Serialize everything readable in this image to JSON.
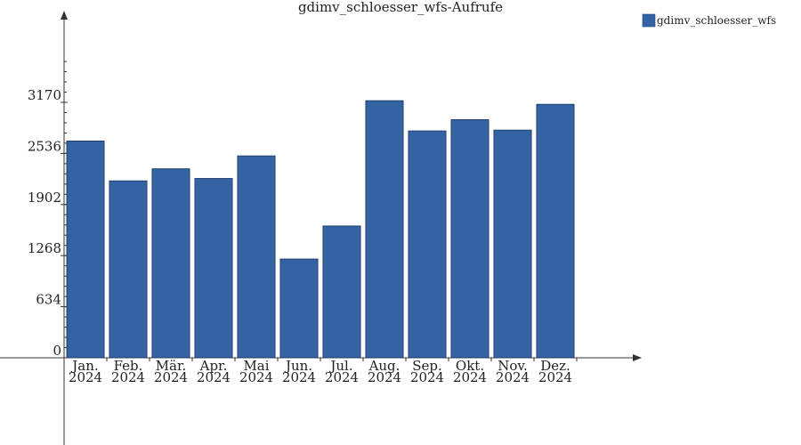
{
  "chart_data": {
    "type": "bar",
    "title": "gdimv_schloesser_wfs-Aufrufe",
    "categories": [
      [
        "Jan.",
        "2024"
      ],
      [
        "Feb.",
        "2024"
      ],
      [
        "Mär.",
        "2024"
      ],
      [
        "Apr.",
        "2024"
      ],
      [
        "Mai",
        "2024"
      ],
      [
        "Jun.",
        "2024"
      ],
      [
        "Jul.",
        "2024"
      ],
      [
        "Aug.",
        "2024"
      ],
      [
        "Sep.",
        "2024"
      ],
      [
        "Okt.",
        "2024"
      ],
      [
        "Nov.",
        "2024"
      ],
      [
        "Dez.",
        "2024"
      ]
    ],
    "series": [
      {
        "name": "gdimv_schloesser_wfs",
        "color": "#3363a3",
        "values": [
          2690,
          2195,
          2345,
          2225,
          2505,
          1225,
          1635,
          3190,
          2815,
          2955,
          2825,
          3145
        ]
      }
    ],
    "yticks": [
      0,
      634,
      1268,
      1902,
      2536,
      3170
    ],
    "ylim": [
      0,
      3170
    ],
    "legend_position": "top-right",
    "grid": false
  }
}
